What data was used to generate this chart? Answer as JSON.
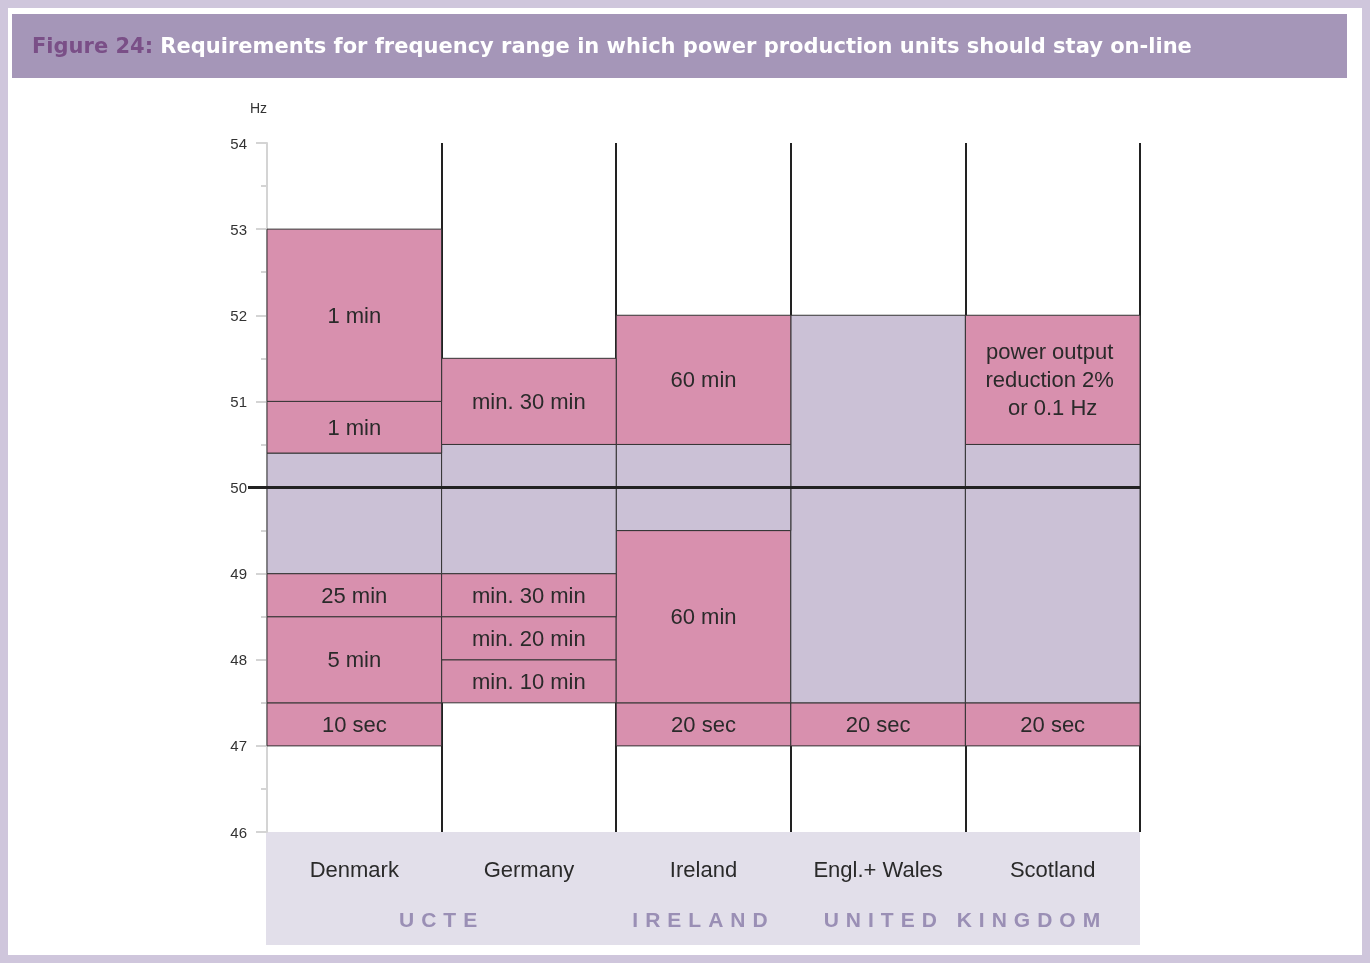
{
  "chart_data": {
    "type": "bar",
    "title": "Figure 24: Requirements for frequency range in which power production units should stay on-line",
    "ylabel": "Hz",
    "categories": [
      "Denmark",
      "Germany",
      "Ireland",
      "Engl.+ Wales",
      "Scotland"
    ],
    "series": [
      {
        "base": [
          47,
          47.5,
          47,
          47,
          47
        ],
        "values": [
          0.5,
          0.5,
          0.5,
          0.5,
          0.5
        ],
        "colors": [
          "#d890ae",
          "#d890ae",
          "#d890ae",
          "#d890ae",
          "#d890ae"
        ]
      },
      {
        "base": [
          47.5,
          48,
          47.5,
          47.5,
          47.5
        ],
        "values": [
          1,
          0.5,
          2,
          4.5,
          3
        ],
        "colors": [
          "#d890ae",
          "#d890ae",
          "#d890ae",
          "#cbc1d6",
          "#cbc1d6"
        ]
      },
      {
        "base": [
          48.5,
          48.5,
          49.5,
          null,
          50.5
        ],
        "values": [
          0.5,
          0.5,
          1,
          null,
          1.5
        ],
        "colors": [
          "#d890ae",
          "#d890ae",
          "#cbc1d6",
          null,
          "#d890ae"
        ]
      },
      {
        "base": [
          49,
          49,
          50.5,
          null,
          null
        ],
        "values": [
          1.4,
          1.5,
          1.5,
          null,
          null
        ],
        "colors": [
          "#cbc1d6",
          "#cbc1d6",
          "#d890ae",
          null,
          null
        ]
      },
      {
        "base": [
          50.4,
          50.5,
          null,
          null,
          null
        ],
        "values": [
          0.6,
          1,
          null,
          null,
          null
        ],
        "colors": [
          "#d890ae",
          "#d890ae",
          null,
          null,
          null
        ]
      },
      {
        "base": [
          51,
          null,
          null,
          null,
          null
        ],
        "values": [
          2,
          null,
          null,
          null,
          null
        ],
        "colors": [
          "#d890ae",
          null,
          null,
          null,
          null
        ]
      }
    ],
    "ylim": [
      46,
      54
    ],
    "yticks": [
      46,
      {
        "value": 46.5,
        "label": null
      },
      47,
      {
        "value": 47.5,
        "label": null
      },
      48,
      {
        "value": 48.5,
        "label": null
      },
      49,
      {
        "value": 49.5,
        "label": null
      },
      50,
      {
        "value": 50.5,
        "label": null
      },
      51,
      {
        "value": 51.5,
        "label": null
      },
      52,
      {
        "value": 52.5,
        "label": null
      },
      53,
      {
        "value": 53.5,
        "label": null
      },
      54
    ],
    "ref_lines": [
      {
        "axis": "y",
        "value": 50,
        "color": "#222222"
      }
    ],
    "annotations": [
      "10 sec",
      "5 min",
      "25 min",
      "1 min",
      "1 min",
      "min. 10 min",
      "min. 20 min",
      "min. 30 min",
      "min. 30 min",
      "20 sec",
      "60 min",
      "60 min",
      "20 sec",
      "20 sec",
      "power output reduction 2% or 0.1 Hz",
      "UCTE",
      "IRELAND",
      "UNITED KINGDOM"
    ],
    "grid": false
  }
}
